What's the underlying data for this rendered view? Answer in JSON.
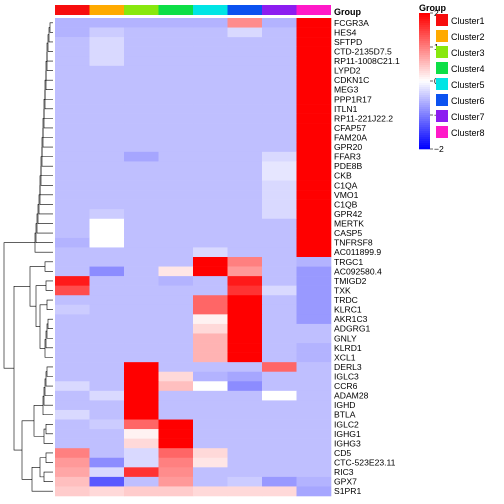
{
  "chart_data": {
    "type": "heatmap",
    "title": "",
    "columns": [
      "Cluster1",
      "Cluster2",
      "Cluster3",
      "Cluster4",
      "Cluster5",
      "Cluster6",
      "Cluster7",
      "Cluster8"
    ],
    "annotation": {
      "title": "Group",
      "colors": [
        "#f70d0d",
        "#ffaa00",
        "#88e80e",
        "#0ddf47",
        "#00e5e5",
        "#0b52f0",
        "#8c1df0",
        "#ff19c8"
      ]
    },
    "rows": [
      "FCGR3A",
      "HES4",
      "SFTPD",
      "CTD-2135D7.5",
      "RP11-1008C21.1",
      "LYPD2",
      "CDKN1C",
      "MEG3",
      "PPP1R17",
      "ITLN1",
      "RP11-221J22.2",
      "CFAP57",
      "FAM20A",
      "GPR20",
      "FFAR3",
      "PDE8B",
      "CKB",
      "C1QA",
      "VMO1",
      "C1QB",
      "GPR42",
      "MERTK",
      "CASP5",
      "TNFRSF8",
      "AC011899.9",
      "TRGC1",
      "AC092580.4",
      "TMIGD2",
      "TXK",
      "TRDC",
      "KLRC1",
      "AKR1C3",
      "ADGRG1",
      "GNLY",
      "KLRD1",
      "XCL1",
      "DERL3",
      "IGLC3",
      "CCR6",
      "ADAM28",
      "IGHD",
      "BTLA",
      "IGLC2",
      "IGHG1",
      "IGHG3",
      "CD5",
      "CTC-523E23.11",
      "RIC3",
      "GPX7",
      "S1PR1"
    ],
    "values": [
      [
        -0.6,
        -0.6,
        -0.6,
        -0.6,
        -0.6,
        0.9,
        -0.6,
        2.2
      ],
      [
        -0.6,
        -0.4,
        -0.5,
        -0.5,
        -0.5,
        -0.3,
        -0.5,
        2.2
      ],
      [
        -0.5,
        -0.3,
        -0.5,
        -0.5,
        -0.5,
        -0.5,
        -0.5,
        2.2
      ],
      [
        -0.5,
        -0.3,
        -0.5,
        -0.5,
        -0.5,
        -0.5,
        -0.5,
        2.2
      ],
      [
        -0.5,
        -0.3,
        -0.5,
        -0.5,
        -0.5,
        -0.5,
        -0.5,
        2.2
      ],
      [
        -0.5,
        -0.5,
        -0.5,
        -0.5,
        -0.5,
        -0.5,
        -0.5,
        2.2
      ],
      [
        -0.5,
        -0.5,
        -0.5,
        -0.5,
        -0.5,
        -0.5,
        -0.5,
        2.2
      ],
      [
        -0.5,
        -0.5,
        -0.5,
        -0.5,
        -0.5,
        -0.5,
        -0.5,
        2.2
      ],
      [
        -0.5,
        -0.5,
        -0.5,
        -0.5,
        -0.5,
        -0.5,
        -0.5,
        2.2
      ],
      [
        -0.5,
        -0.5,
        -0.5,
        -0.5,
        -0.5,
        -0.5,
        -0.5,
        2.2
      ],
      [
        -0.5,
        -0.5,
        -0.5,
        -0.5,
        -0.5,
        -0.5,
        -0.5,
        2.2
      ],
      [
        -0.5,
        -0.5,
        -0.5,
        -0.5,
        -0.5,
        -0.5,
        -0.5,
        2.2
      ],
      [
        -0.5,
        -0.5,
        -0.5,
        -0.5,
        -0.5,
        -0.5,
        -0.5,
        2.2
      ],
      [
        -0.5,
        -0.5,
        -0.5,
        -0.5,
        -0.5,
        -0.5,
        -0.5,
        2.2
      ],
      [
        -0.5,
        -0.5,
        -0.7,
        -0.5,
        -0.5,
        -0.5,
        -0.3,
        2.2
      ],
      [
        -0.5,
        -0.5,
        -0.5,
        -0.5,
        -0.5,
        -0.5,
        -0.2,
        2.2
      ],
      [
        -0.5,
        -0.5,
        -0.5,
        -0.5,
        -0.5,
        -0.5,
        -0.2,
        2.2
      ],
      [
        -0.5,
        -0.5,
        -0.5,
        -0.5,
        -0.5,
        -0.5,
        -0.3,
        2.2
      ],
      [
        -0.5,
        -0.5,
        -0.5,
        -0.5,
        -0.5,
        -0.5,
        -0.3,
        2.2
      ],
      [
        -0.5,
        -0.5,
        -0.5,
        -0.5,
        -0.5,
        -0.5,
        -0.3,
        2.2
      ],
      [
        -0.5,
        -0.4,
        -0.5,
        -0.5,
        -0.5,
        -0.5,
        -0.3,
        2.2
      ],
      [
        -0.5,
        0.0,
        -0.5,
        -0.5,
        -0.5,
        -0.5,
        -0.5,
        2.2
      ],
      [
        -0.5,
        0.0,
        -0.5,
        -0.5,
        -0.5,
        -0.5,
        -0.5,
        2.2
      ],
      [
        -0.6,
        0.0,
        -0.5,
        -0.5,
        -0.5,
        -0.5,
        -0.5,
        2.2
      ],
      [
        -0.5,
        -0.5,
        -0.5,
        -0.5,
        -0.3,
        -0.5,
        -0.5,
        2.2
      ],
      [
        -0.5,
        -0.5,
        -0.5,
        -0.5,
        2.2,
        1.0,
        -0.5,
        -0.6
      ],
      [
        -0.5,
        -0.9,
        -0.5,
        0.2,
        2.2,
        0.8,
        -0.5,
        -0.8
      ],
      [
        1.8,
        -0.5,
        -0.5,
        -0.6,
        -0.5,
        1.8,
        -0.5,
        -0.8
      ],
      [
        1.4,
        -0.5,
        -0.5,
        -0.5,
        -0.5,
        1.6,
        -0.3,
        -0.8
      ],
      [
        -0.5,
        -0.5,
        -0.5,
        -0.5,
        1.2,
        2.2,
        -0.5,
        -0.8
      ],
      [
        -0.4,
        -0.5,
        -0.5,
        -0.5,
        1.2,
        2.2,
        -0.5,
        -0.8
      ],
      [
        -0.5,
        -0.5,
        -0.5,
        -0.5,
        0.1,
        2.2,
        -0.5,
        -0.8
      ],
      [
        -0.5,
        -0.5,
        -0.5,
        -0.5,
        0.3,
        2.2,
        -0.5,
        -0.5
      ],
      [
        -0.5,
        -0.5,
        -0.5,
        -0.5,
        0.6,
        2.2,
        -0.5,
        -0.5
      ],
      [
        -0.5,
        -0.5,
        -0.5,
        -0.5,
        0.6,
        2.2,
        -0.5,
        -0.6
      ],
      [
        -0.5,
        -0.5,
        -0.5,
        -0.5,
        0.6,
        2.2,
        -0.5,
        -0.6
      ],
      [
        -0.5,
        -0.5,
        2.2,
        -0.5,
        -0.5,
        -0.5,
        1.2,
        -0.5
      ],
      [
        -0.5,
        -0.5,
        2.2,
        0.3,
        -0.6,
        -0.7,
        -0.5,
        -0.5
      ],
      [
        -0.3,
        -0.5,
        2.2,
        0.5,
        0.0,
        -0.9,
        -0.5,
        -0.5
      ],
      [
        -0.5,
        -0.3,
        2.2,
        -0.5,
        -0.5,
        -0.5,
        0.0,
        -0.5
      ],
      [
        -0.5,
        -0.5,
        2.2,
        -0.5,
        -0.5,
        -0.5,
        -0.5,
        -0.5
      ],
      [
        -0.3,
        -0.5,
        2.2,
        -0.5,
        -0.5,
        -0.5,
        -0.5,
        -0.5
      ],
      [
        -0.5,
        -0.4,
        1.2,
        2.2,
        -0.5,
        -0.5,
        -0.5,
        -0.5
      ],
      [
        -0.5,
        -0.5,
        0.1,
        2.2,
        -0.5,
        -0.5,
        -0.5,
        -0.5
      ],
      [
        -0.5,
        -0.5,
        0.3,
        2.2,
        -0.5,
        -0.5,
        -0.5,
        -0.5
      ],
      [
        1.0,
        -0.5,
        -0.3,
        1.2,
        0.3,
        -0.5,
        -0.5,
        -0.5
      ],
      [
        0.8,
        -0.9,
        -0.3,
        1.0,
        0.2,
        -0.5,
        -0.5,
        -0.5
      ],
      [
        0.7,
        -0.3,
        1.6,
        0.9,
        -0.5,
        -0.5,
        -0.5,
        -0.5
      ],
      [
        0.5,
        -1.3,
        -0.5,
        0.8,
        -0.5,
        -0.4,
        -0.8,
        -0.6
      ],
      [
        0.4,
        0.3,
        0.4,
        0.4,
        0.3,
        0.3,
        0.3,
        -0.7
      ]
    ],
    "color_scale": {
      "min": -2,
      "mid": 0,
      "max": 2,
      "low": "#0000ff",
      "midColor": "#ffffff",
      "high": "#ff0000"
    },
    "legend": {
      "ticks": [
        "2",
        "1",
        "0",
        "−1",
        "−2"
      ],
      "tick_values": [
        2,
        1,
        0,
        -1,
        -2
      ],
      "placement": "top-right"
    },
    "dendrogram": "left"
  }
}
